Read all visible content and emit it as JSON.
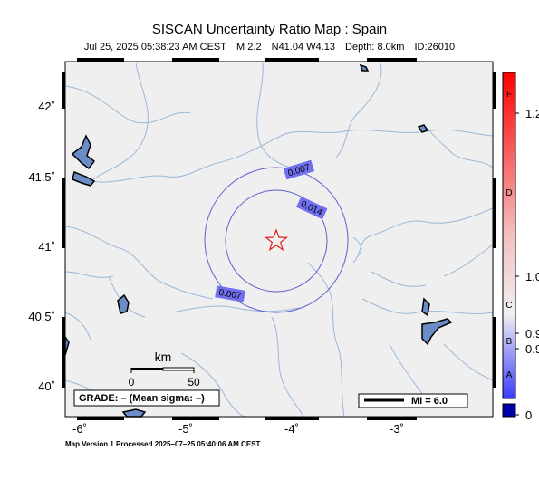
{
  "header": {
    "title": "SISCAN Uncertainty Ratio Map : Spain",
    "datetime": "Jul 25, 2025 05:38:23 AM CEST",
    "magnitude": "M 2.2",
    "location": "N41.04 W4.13",
    "depth": "Depth: 8.0km",
    "event_id": "ID:26010"
  },
  "axes": {
    "lat_labels": [
      "42˚",
      "41.5˚",
      "41˚",
      "40.5˚",
      "40˚"
    ],
    "lon_labels": [
      "-6˚",
      "-5˚",
      "-4˚",
      "-3˚"
    ]
  },
  "contours": [
    {
      "label": "0.007",
      "radius_km": 65
    },
    {
      "label": "0.014",
      "radius_km": 46
    }
  ],
  "epicenter": {
    "lat": 41.04,
    "lon": -4.13,
    "symbol": "star-icon"
  },
  "scale_bar": {
    "title": "km",
    "ticks": [
      "0",
      "50"
    ]
  },
  "grade_box": "GRADE: – (Mean sigma: –)",
  "mi_legend": "MI = 6.0",
  "colorbar": {
    "letters": [
      "F",
      "D",
      "C",
      "B",
      "A"
    ],
    "values": [
      "1.2",
      "1.0",
      "0.9",
      "0.9",
      "0"
    ],
    "colors": {
      "top": "#ff0000",
      "mid": "#f0f0f0",
      "bottom": "#0000ff",
      "nodata": "#0000aa"
    }
  },
  "footer": "Map Version 1 Processed 2025–07–25 05:40:06 AM CEST",
  "colors": {
    "land": "#efefef",
    "rivers": "#9ab8d8",
    "contour": "#6060d0",
    "contour_label_bg": "#7070ee",
    "star": "#e02020"
  }
}
